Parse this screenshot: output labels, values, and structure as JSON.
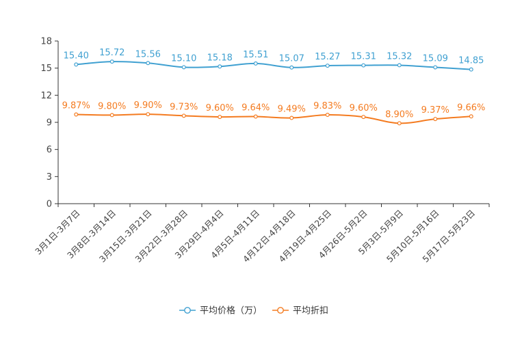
{
  "chart_data": {
    "type": "line",
    "title": "",
    "xlabel": "",
    "ylabel": "",
    "ylim": [
      0,
      18
    ],
    "yticks": [
      0,
      3,
      6,
      9,
      12,
      15,
      18
    ],
    "grid": false,
    "legend_position": "bottom-center",
    "categories": [
      "3月1日-3月7日",
      "3月8日-3月14日",
      "3月15日-3月21日",
      "3月22日-3月28日",
      "3月29日-4月4日",
      "4月5日-4月11日",
      "4月12日-4月18日",
      "4月19日-4月25日",
      "4月26日-5月2日",
      "5月3日-5月9日",
      "5月10日-5月16日",
      "5月17日-5月23日"
    ],
    "series": [
      {
        "name": "平均价格（万）",
        "color": "#3fa0d1",
        "values": [
          15.4,
          15.72,
          15.56,
          15.1,
          15.18,
          15.51,
          15.07,
          15.27,
          15.31,
          15.32,
          15.09,
          14.85
        ],
        "labels": [
          "15.40",
          "15.72",
          "15.56",
          "15.10",
          "15.18",
          "15.51",
          "15.07",
          "15.27",
          "15.31",
          "15.32",
          "15.09",
          "14.85"
        ]
      },
      {
        "name": "平均折扣",
        "color": "#f47b20",
        "values": [
          9.87,
          9.8,
          9.9,
          9.73,
          9.6,
          9.64,
          9.49,
          9.83,
          9.6,
          8.9,
          9.37,
          9.66
        ],
        "labels": [
          "9.87%",
          "9.80%",
          "9.90%",
          "9.73%",
          "9.60%",
          "9.64%",
          "9.49%",
          "9.83%",
          "9.60%",
          "8.90%",
          "9.37%",
          "9.66%"
        ]
      }
    ]
  }
}
